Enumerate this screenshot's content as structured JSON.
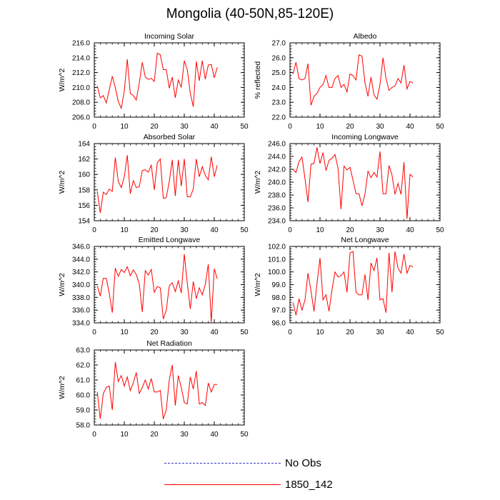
{
  "title": "Mongolia (40-50N,85-120E)",
  "chart_data": [
    {
      "type": "line",
      "title": "Incoming Solar",
      "ylabel": "W/m^2",
      "xlim": [
        0,
        50
      ],
      "xticks": [
        "0",
        "10",
        "20",
        "30",
        "40",
        "50"
      ],
      "ylim": [
        206.0,
        216.0
      ],
      "yticks": [
        "206.0",
        "208.0",
        "210.0",
        "212.0",
        "214.0",
        "216.0"
      ],
      "series": [
        {
          "name": "1850_142",
          "color": "#ff0000",
          "x": [
            1,
            2,
            3,
            4,
            5,
            6,
            7,
            8,
            9,
            10,
            11,
            12,
            13,
            14,
            15,
            16,
            17,
            18,
            19,
            20,
            21,
            22,
            23,
            24,
            25,
            26,
            27,
            28,
            29,
            30,
            31,
            32,
            33,
            34,
            35,
            36,
            37,
            38,
            39,
            40,
            41
          ],
          "values": [
            210.2,
            208.6,
            208.9,
            207.9,
            209.7,
            211.5,
            210.0,
            208.1,
            207.2,
            209.5,
            213.8,
            209.2,
            208.9,
            208.3,
            210.6,
            213.4,
            211.4,
            211.1,
            211.2,
            210.8,
            214.6,
            214.4,
            212.4,
            212.4,
            209.9,
            211.4,
            208.6,
            211.0,
            210.0,
            213.6,
            212.4,
            209.2,
            207.4,
            213.5,
            210.9,
            213.6,
            211.1,
            213.0,
            213.1,
            211.3,
            212.7
          ]
        }
      ]
    },
    {
      "type": "line",
      "title": "Albedo",
      "ylabel": "% reflected",
      "xlim": [
        0,
        50
      ],
      "xticks": [
        "0",
        "10",
        "20",
        "30",
        "40",
        "50"
      ],
      "ylim": [
        22.0,
        27.0
      ],
      "yticks": [
        "22.0",
        "23.0",
        "24.0",
        "25.0",
        "26.0",
        "27.0"
      ],
      "series": [
        {
          "name": "1850_142",
          "color": "#ff0000",
          "x": [
            1,
            2,
            3,
            4,
            5,
            6,
            7,
            8,
            9,
            10,
            11,
            12,
            13,
            14,
            15,
            16,
            17,
            18,
            19,
            20,
            21,
            22,
            23,
            24,
            25,
            26,
            27,
            28,
            29,
            30,
            31,
            32,
            33,
            34,
            35,
            36,
            37,
            38,
            39,
            40,
            41
          ],
          "values": [
            24.9,
            25.7,
            24.6,
            24.5,
            24.6,
            25.6,
            22.8,
            23.4,
            23.6,
            24.0,
            24.2,
            24.8,
            24.0,
            24.0,
            24.6,
            24.8,
            24.0,
            24.2,
            23.7,
            24.9,
            24.8,
            24.5,
            26.2,
            26.1,
            24.3,
            23.4,
            24.7,
            23.5,
            23.2,
            24.2,
            26.0,
            24.6,
            23.8,
            24.0,
            24.1,
            24.6,
            24.3,
            25.5,
            23.9,
            24.4,
            24.3
          ]
        }
      ]
    },
    {
      "type": "line",
      "title": "Absorbed Solar",
      "ylabel": "W/m^2",
      "xlim": [
        0,
        50
      ],
      "xticks": [
        "0",
        "10",
        "20",
        "30",
        "40",
        "50"
      ],
      "ylim": [
        154,
        164
      ],
      "yticks": [
        "154",
        "156",
        "158",
        "160",
        "162",
        "164"
      ],
      "series": [
        {
          "name": "1850_142",
          "color": "#ff0000",
          "x": [
            1,
            2,
            3,
            4,
            5,
            6,
            7,
            8,
            9,
            10,
            11,
            12,
            13,
            14,
            15,
            16,
            17,
            18,
            19,
            20,
            21,
            22,
            23,
            24,
            25,
            26,
            27,
            28,
            29,
            30,
            31,
            32,
            33,
            34,
            35,
            36,
            37,
            38,
            39,
            40,
            41
          ],
          "values": [
            157.8,
            155.0,
            157.7,
            157.4,
            158.1,
            157.8,
            162.2,
            159.1,
            158.3,
            159.7,
            162.5,
            157.5,
            159.2,
            158.3,
            158.4,
            160.5,
            160.6,
            160.3,
            161.2,
            158.0,
            161.5,
            162.0,
            156.9,
            157.0,
            159.1,
            161.9,
            157.2,
            161.9,
            158.5,
            162.0,
            157.1,
            157.1,
            158.1,
            162.0,
            159.7,
            161.0,
            159.9,
            159.3,
            162.3,
            159.7,
            161.2
          ]
        }
      ]
    },
    {
      "type": "line",
      "title": "Incoming Longwave",
      "ylabel": "W/m^2",
      "xlim": [
        0,
        50
      ],
      "xticks": [
        "0",
        "10",
        "20",
        "30",
        "40",
        "50"
      ],
      "ylim": [
        234.0,
        246.0
      ],
      "yticks": [
        "234.0",
        "236.0",
        "238.0",
        "240.0",
        "242.0",
        "244.0",
        "246.0"
      ],
      "series": [
        {
          "name": "1850_142",
          "color": "#ff0000",
          "x": [
            1,
            2,
            3,
            4,
            5,
            6,
            7,
            8,
            9,
            10,
            11,
            12,
            13,
            14,
            15,
            16,
            17,
            18,
            19,
            20,
            21,
            22,
            23,
            24,
            25,
            26,
            27,
            28,
            29,
            30,
            31,
            32,
            33,
            34,
            35,
            36,
            37,
            38,
            39,
            40,
            41
          ],
          "values": [
            242.0,
            241.5,
            243.2,
            243.9,
            240.5,
            236.9,
            242.8,
            242.9,
            245.4,
            242.9,
            244.6,
            241.8,
            243.4,
            243.7,
            244.3,
            242.2,
            235.8,
            242.5,
            241.9,
            242.3,
            240.3,
            238.2,
            238.2,
            236.3,
            238.2,
            241.7,
            240.7,
            241.5,
            240.8,
            244.8,
            238.2,
            238.2,
            242.6,
            241.1,
            238.1,
            239.8,
            238.1,
            243.1,
            234.3,
            241.2,
            240.8
          ]
        }
      ]
    },
    {
      "type": "line",
      "title": "Emitted Longwave",
      "ylabel": "W/m^2",
      "xlim": [
        0,
        50
      ],
      "xticks": [
        "0",
        "10",
        "20",
        "30",
        "40",
        "50"
      ],
      "ylim": [
        334.0,
        346.0
      ],
      "yticks": [
        "334.0",
        "336.0",
        "338.0",
        "340.0",
        "342.0",
        "344.0",
        "346.0"
      ],
      "series": [
        {
          "name": "1850_142",
          "color": "#ff0000",
          "x": [
            1,
            2,
            3,
            4,
            5,
            6,
            7,
            8,
            9,
            10,
            11,
            12,
            13,
            14,
            15,
            16,
            17,
            18,
            19,
            20,
            21,
            22,
            23,
            24,
            25,
            26,
            27,
            28,
            29,
            30,
            31,
            32,
            33,
            34,
            35,
            36,
            37,
            38,
            39,
            40,
            41
          ],
          "values": [
            339.8,
            338.2,
            341.0,
            341.0,
            338.6,
            335.6,
            342.6,
            341.3,
            342.4,
            341.9,
            342.8,
            341.4,
            342.3,
            341.6,
            340.1,
            335.7,
            342.2,
            341.5,
            342.4,
            338.8,
            339.7,
            339.5,
            334.6,
            336.0,
            339.8,
            340.3,
            338.9,
            340.6,
            338.7,
            344.8,
            340.2,
            336.2,
            340.5,
            337.8,
            339.5,
            338.4,
            340.0,
            343.2,
            334.1,
            342.5,
            340.9
          ]
        }
      ]
    },
    {
      "type": "line",
      "title": "Net Longwave",
      "ylabel": "W/m^2",
      "xlim": [
        0,
        50
      ],
      "xticks": [
        "0",
        "10",
        "20",
        "30",
        "40",
        "50"
      ],
      "ylim": [
        96.0,
        102.0
      ],
      "yticks": [
        "96.0",
        "97.0",
        "98.0",
        "99.0",
        "100.0",
        "101.0",
        "102.0"
      ],
      "series": [
        {
          "name": "1850_142",
          "color": "#ff0000",
          "x": [
            1,
            2,
            3,
            4,
            5,
            6,
            7,
            8,
            9,
            10,
            11,
            12,
            13,
            14,
            15,
            16,
            17,
            18,
            19,
            20,
            21,
            22,
            23,
            24,
            25,
            26,
            27,
            28,
            29,
            30,
            31,
            32,
            33,
            34,
            35,
            36,
            37,
            38,
            39,
            40,
            41
          ],
          "values": [
            97.6,
            96.6,
            97.9,
            97.0,
            97.8,
            99.9,
            98.5,
            96.9,
            99.1,
            101.1,
            97.8,
            98.2,
            96.9,
            98.6,
            100.0,
            99.6,
            99.7,
            100.0,
            98.4,
            101.5,
            101.6,
            98.4,
            98.2,
            98.2,
            99.8,
            97.8,
            100.7,
            100.1,
            101.1,
            97.8,
            97.9,
            96.8,
            101.5,
            98.4,
            101.6,
            100.3,
            99.9,
            101.4,
            99.9,
            100.5,
            100.4
          ]
        }
      ]
    },
    {
      "type": "line",
      "title": "Net Radiation",
      "ylabel": "W/m^2",
      "xlim": [
        0,
        50
      ],
      "xticks": [
        "0",
        "10",
        "20",
        "30",
        "40",
        "50"
      ],
      "ylim": [
        58.0,
        63.0
      ],
      "yticks": [
        "58.0",
        "59.0",
        "60.0",
        "61.0",
        "62.0",
        "63.0"
      ],
      "series": [
        {
          "name": "1850_142",
          "color": "#ff0000",
          "x": [
            1,
            2,
            3,
            4,
            5,
            6,
            7,
            8,
            9,
            10,
            11,
            12,
            13,
            14,
            15,
            16,
            17,
            18,
            19,
            20,
            21,
            22,
            23,
            24,
            25,
            26,
            27,
            28,
            29,
            30,
            31,
            32,
            33,
            34,
            35,
            36,
            37,
            38,
            39,
            40,
            41
          ],
          "values": [
            60.2,
            58.4,
            60.1,
            60.5,
            60.6,
            59.0,
            62.2,
            60.9,
            61.3,
            60.6,
            61.2,
            60.3,
            60.8,
            61.5,
            60.1,
            60.5,
            61.0,
            60.4,
            61.1,
            60.2,
            60.2,
            60.3,
            58.4,
            59.0,
            61.0,
            62.0,
            59.3,
            61.3,
            60.5,
            59.5,
            59.4,
            61.2,
            60.4,
            61.6,
            59.4,
            59.5,
            59.3,
            60.8,
            60.2,
            60.7,
            60.7
          ]
        }
      ]
    }
  ],
  "legend": {
    "position": "bottom",
    "items": [
      {
        "label": "No Obs",
        "color": "#3333cc",
        "style": "dashed"
      },
      {
        "label": "1850_142",
        "color": "#ff0000",
        "style": "solid"
      }
    ]
  }
}
